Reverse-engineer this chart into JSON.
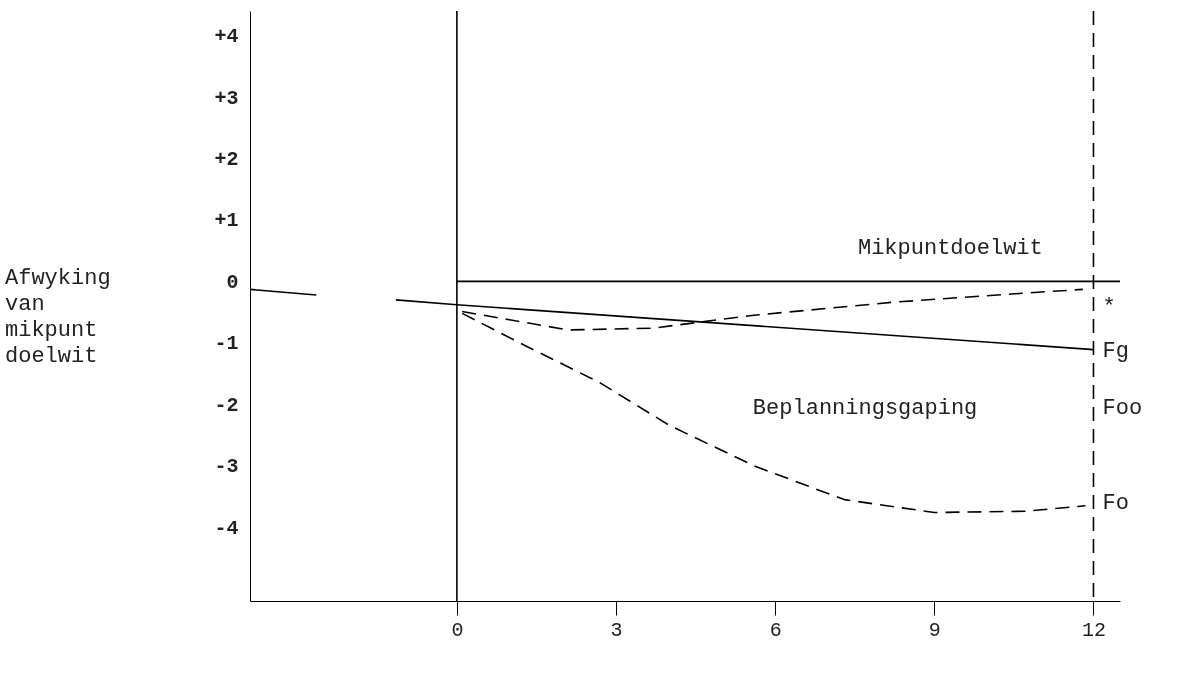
{
  "chart_data": {
    "type": "line",
    "ylabel": "Afwyking\nvan\nmikpunt\ndoelwit",
    "xlim": [
      -3.9,
      12.5
    ],
    "xticks": [
      0,
      3,
      6,
      9,
      12
    ],
    "ylim": [
      -5.2,
      4.4
    ],
    "yticks": [
      {
        "value": 4,
        "label": "+4"
      },
      {
        "value": 3,
        "label": "+3"
      },
      {
        "value": 2,
        "label": "+2"
      },
      {
        "value": 1,
        "label": "+1"
      },
      {
        "value": 0,
        "label": "0"
      },
      {
        "value": -1,
        "label": "-1"
      },
      {
        "value": -2,
        "label": "-2"
      },
      {
        "value": -3,
        "label": "-3"
      },
      {
        "value": -4,
        "label": "-4"
      }
    ],
    "grid": false,
    "marker": "none",
    "series": [
      {
        "color": "#000000",
        "line_style": "solid",
        "x": [
          -3.9,
          -2.65,
          -2,
          -1.15,
          0,
          12
        ],
        "values": [
          -0.13,
          -0.22,
          null,
          -0.3,
          -0.38,
          -1.11
        ]
      },
      {
        "color": "#000000",
        "line_style": "solid",
        "x": [
          0,
          12.5
        ],
        "values": [
          0,
          0
        ]
      },
      {
        "color": "#000000",
        "line_style": "dashed",
        "x": [
          0.1,
          2.1,
          3.7,
          5.6,
          8.2,
          10.7,
          11.8
        ],
        "values": [
          -0.49,
          -0.79,
          -0.76,
          -0.55,
          -0.34,
          -0.19,
          -0.13
        ]
      },
      {
        "color": "#000000",
        "line_style": "dashed",
        "x": [
          0.1,
          1.3,
          2.7,
          4.0,
          5.6,
          7.3,
          9.0,
          10.7,
          11.85
        ],
        "values": [
          -0.52,
          -1.05,
          -1.65,
          -2.34,
          -3.0,
          -3.55,
          -3.76,
          -3.74,
          -3.65
        ]
      }
    ],
    "ref_lines": [
      {
        "axis": "x",
        "value": 0,
        "color": "#000000",
        "line_style": "solid"
      },
      {
        "axis": "x",
        "value": 12,
        "color": "#000000",
        "line_style": "dashed"
      }
    ],
    "annotations": [
      "Mikpuntdoelwit",
      "Beplanningsgaping",
      "Fg",
      "Foo",
      "Fo",
      "*"
    ]
  }
}
